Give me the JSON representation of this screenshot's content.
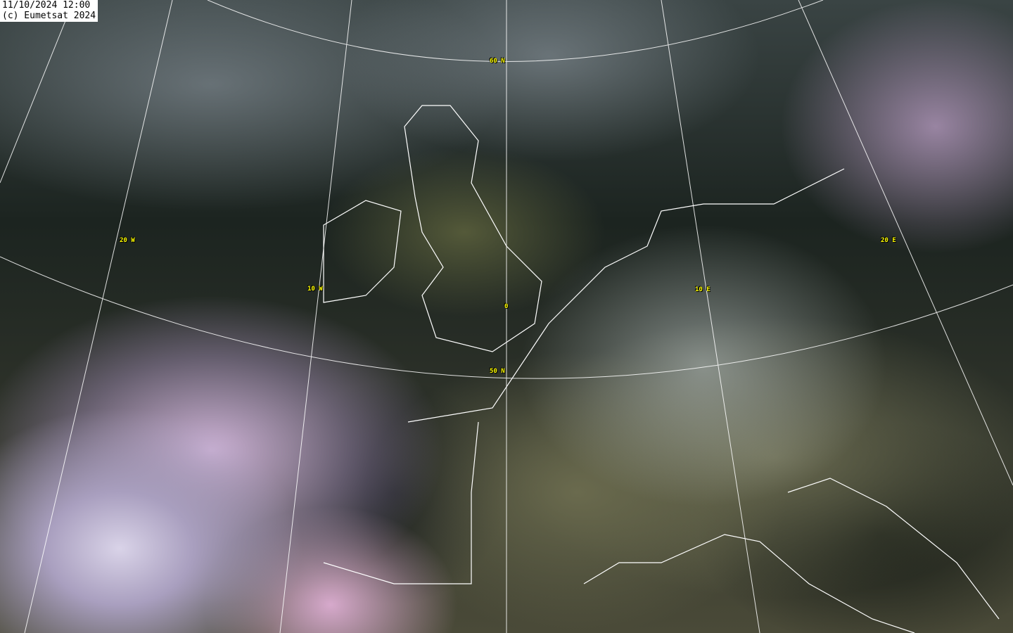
{
  "timestamp": "11/10/2024 12:00",
  "copyright": "(c) Eumetsat 2024",
  "graticule_labels": {
    "lat60": "60 N",
    "lat50": "50 N",
    "lon20w": "20 W",
    "lon10w": "10 W",
    "lon0": "0",
    "lon10e": "10 E",
    "lon20e": "20 E"
  },
  "colors": {
    "grid": "#ffffff",
    "label": "#ffff00",
    "coastline": "#ffffff"
  }
}
